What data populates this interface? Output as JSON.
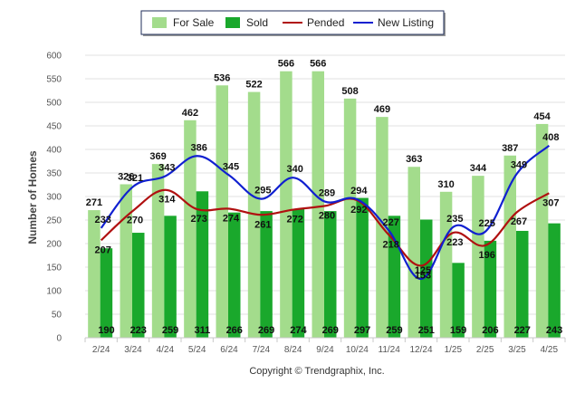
{
  "chart_data": {
    "type": "bar",
    "ylabel": "Number of Homes",
    "credit": "Copyright © Trendgraphix, Inc.",
    "categories": [
      "2/24",
      "3/24",
      "4/24",
      "5/24",
      "6/24",
      "7/24",
      "8/24",
      "9/24",
      "10/24",
      "11/24",
      "12/24",
      "1/25",
      "2/25",
      "3/25",
      "4/25"
    ],
    "ylim": [
      0,
      600
    ],
    "yticks": [
      0,
      50,
      100,
      150,
      200,
      250,
      300,
      350,
      400,
      450,
      500,
      550,
      600
    ],
    "grid": true,
    "legend_position": "top-center",
    "series": [
      {
        "name": "For Sale",
        "kind": "bar",
        "color": "#a3dc8c",
        "values": [
          271,
          326,
          369,
          462,
          536,
          522,
          566,
          566,
          508,
          469,
          363,
          310,
          344,
          387,
          454
        ]
      },
      {
        "name": "Sold",
        "kind": "bar",
        "color": "#1aa82c",
        "values": [
          190,
          223,
          259,
          311,
          266,
          269,
          274,
          269,
          297,
          259,
          251,
          159,
          206,
          227,
          243
        ]
      },
      {
        "name": "Pended",
        "kind": "line",
        "color": "#b01010",
        "values": [
          207,
          270,
          314,
          273,
          274,
          261,
          272,
          280,
          292,
          218,
          153,
          223,
          196,
          267,
          307
        ]
      },
      {
        "name": "New Listing",
        "kind": "line",
        "color": "#1020d0",
        "values": [
          233,
          321,
          343,
          386,
          345,
          295,
          340,
          289,
          294,
          227,
          125,
          235,
          225,
          349,
          408
        ]
      }
    ]
  }
}
